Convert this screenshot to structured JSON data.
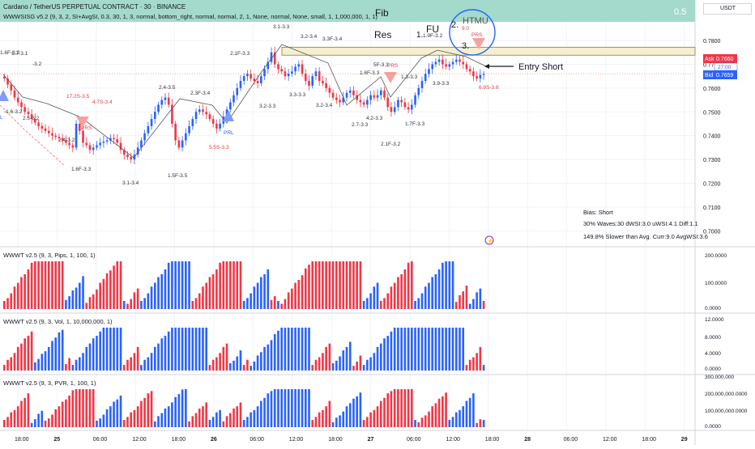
{
  "header": {
    "title": "Cardano / TetherUS PERPETUAL CONTRACT · 30 · BINANCE",
    "indicator": "WWWSISG v5.2 (9, 3, 2, SI+AvgSI, 0.3, 30, 1, 3, normal, bottom_right, normal, normal, 2, 1, None, normal, None, small, 1, 1,000,000, 1, 1)",
    "currency": "USDT"
  },
  "annotations": {
    "fib": "Fib",
    "fib_value": "0.5",
    "res": "Res",
    "fu": "FU",
    "fu_num": "1.",
    "htmu": "HTMU",
    "htmu_num": "2.",
    "three": "3.",
    "entry": "Entry Short"
  },
  "price_scale": {
    "ask_label": "Ask",
    "ask": "0.7660",
    "countdown": "27:00",
    "bid_label": "Bid",
    "bid": "0.7659",
    "ticks": [
      "0.7800",
      "0.7700",
      "0.7600",
      "0.7500",
      "0.7400",
      "0.7300",
      "0.7200",
      "0.7100",
      "0.7000"
    ]
  },
  "stats": {
    "bias": "Bias: Short",
    "line2": "30% Waves:30 dWSI:3.0 uWSI:4.1 Diff:1.1",
    "line3": "149.8% Slower than Avg. Curr:9.0 AvgWSI:3.6"
  },
  "wave_labels": [
    {
      "t": "1.6F-3.2"
    },
    {
      "t": "1.7-3.1"
    },
    {
      "t": "-3.2"
    },
    {
      "t": "-1.6-3.2"
    },
    {
      "t": "2.5-3.2"
    },
    {
      "t": "17.2S-3.5",
      "red": true
    },
    {
      "t": "4.7S-3.4",
      "red": true
    },
    {
      "t": "PRS",
      "red": true
    },
    {
      "t": "2.4-3.2"
    },
    {
      "t": "1.6F-3.3"
    },
    {
      "t": "3.1-3.4"
    },
    {
      "t": "2.4-3.5"
    },
    {
      "t": "1.5F-3.5"
    },
    {
      "t": "2.3F-3.4"
    },
    {
      "t": "5.5S-3.3",
      "red": true
    },
    {
      "t": "PRL",
      "blue": true
    },
    {
      "t": "2.1F-3.3"
    },
    {
      "t": "3.2-3.3"
    },
    {
      "t": "3.1-3.3"
    },
    {
      "t": "3.2-3.4"
    },
    {
      "t": "3.3F-3.4"
    },
    {
      "t": "3.3-3.3"
    },
    {
      "t": "3.2-3.4"
    },
    {
      "t": "1.6F-3.3"
    },
    {
      "t": "5F-3.3"
    },
    {
      "t": "PRS",
      "red": true
    },
    {
      "t": "4.2-3.3"
    },
    {
      "t": "2.7-3.3"
    },
    {
      "t": "1.3-3.3"
    },
    {
      "t": "1.7F-3.3"
    },
    {
      "t": "2.1F-3.2"
    },
    {
      "t": "3.9-3.3"
    },
    {
      "t": "1.9F-3.2"
    },
    {
      "t": "9.0",
      "red": true
    },
    {
      "t": "PRS",
      "red": true
    },
    {
      "t": "6.9S-3.6",
      "red": true
    },
    {
      "t": "L",
      "blue": true
    }
  ],
  "panes": [
    {
      "title": "WWWT v2.5 (9, 3, Pips, 1, 100, 1)",
      "ticks": [
        "200.0000",
        "100.0000",
        "0.0000"
      ]
    },
    {
      "title": "WWWT v2.5 (9, 3, Vol, 1, 10,000,000, 1)",
      "ticks": [
        "12.0000",
        "8.0000",
        "4.0000",
        "0.0000"
      ]
    },
    {
      "title": "WWWT v2.5 (9, 3, PVR, 1, 100, 1)",
      "ticks": [
        "300,000,000",
        "200,000,000.0000",
        "100,000,000.0000",
        "0.0000"
      ]
    }
  ],
  "time_axis": [
    "18:00",
    "25",
    "06:00",
    "12:00",
    "18:00",
    "26",
    "06:00",
    "12:00",
    "18:00",
    "27",
    "06:00",
    "12:00",
    "18:00",
    "28",
    "06:00",
    "12:00",
    "18:00",
    "29"
  ],
  "chart_data": {
    "type": "candlestick",
    "symbol": "ADAUSDT.P",
    "interval": "30",
    "ylim": [
      0.695,
      0.7875
    ],
    "resistance": [
      0.7745,
      0.7765
    ],
    "close_series": [
      0.764,
      0.7615,
      0.759,
      0.756,
      0.754,
      0.752,
      0.75,
      0.749,
      0.747,
      0.7455,
      0.744,
      0.743,
      0.742,
      0.741,
      0.74,
      0.7395,
      0.739,
      0.738,
      0.737,
      0.736,
      0.735,
      0.745,
      0.742,
      0.737,
      0.736,
      0.734,
      0.735,
      0.736,
      0.737,
      0.7375,
      0.738,
      0.739,
      0.7385,
      0.737,
      0.734,
      0.732,
      0.731,
      0.73,
      0.732,
      0.735,
      0.738,
      0.741,
      0.744,
      0.747,
      0.75,
      0.753,
      0.755,
      0.756,
      0.753,
      0.745,
      0.738,
      0.735,
      0.738,
      0.741,
      0.744,
      0.747,
      0.75,
      0.751,
      0.75,
      0.749,
      0.747,
      0.745,
      0.743,
      0.745,
      0.748,
      0.751,
      0.754,
      0.757,
      0.76,
      0.763,
      0.765,
      0.766,
      0.764,
      0.763,
      0.762,
      0.765,
      0.768,
      0.771,
      0.775,
      0.77,
      0.768,
      0.767,
      0.765,
      0.766,
      0.767,
      0.769,
      0.77,
      0.766,
      0.763,
      0.761,
      0.765,
      0.767,
      0.763,
      0.762,
      0.76,
      0.758,
      0.756,
      0.755,
      0.754,
      0.756,
      0.758,
      0.759,
      0.757,
      0.755,
      0.754,
      0.753,
      0.755,
      0.757,
      0.756,
      0.757,
      0.759,
      0.756,
      0.752,
      0.75,
      0.752,
      0.755,
      0.754,
      0.752,
      0.751,
      0.753,
      0.757,
      0.76,
      0.763,
      0.766,
      0.768,
      0.77,
      0.771,
      0.772,
      0.77,
      0.769,
      0.77,
      0.771,
      0.772,
      0.771,
      0.77,
      0.768,
      0.767,
      0.765,
      0.764,
      0.7655,
      0.766
    ]
  }
}
